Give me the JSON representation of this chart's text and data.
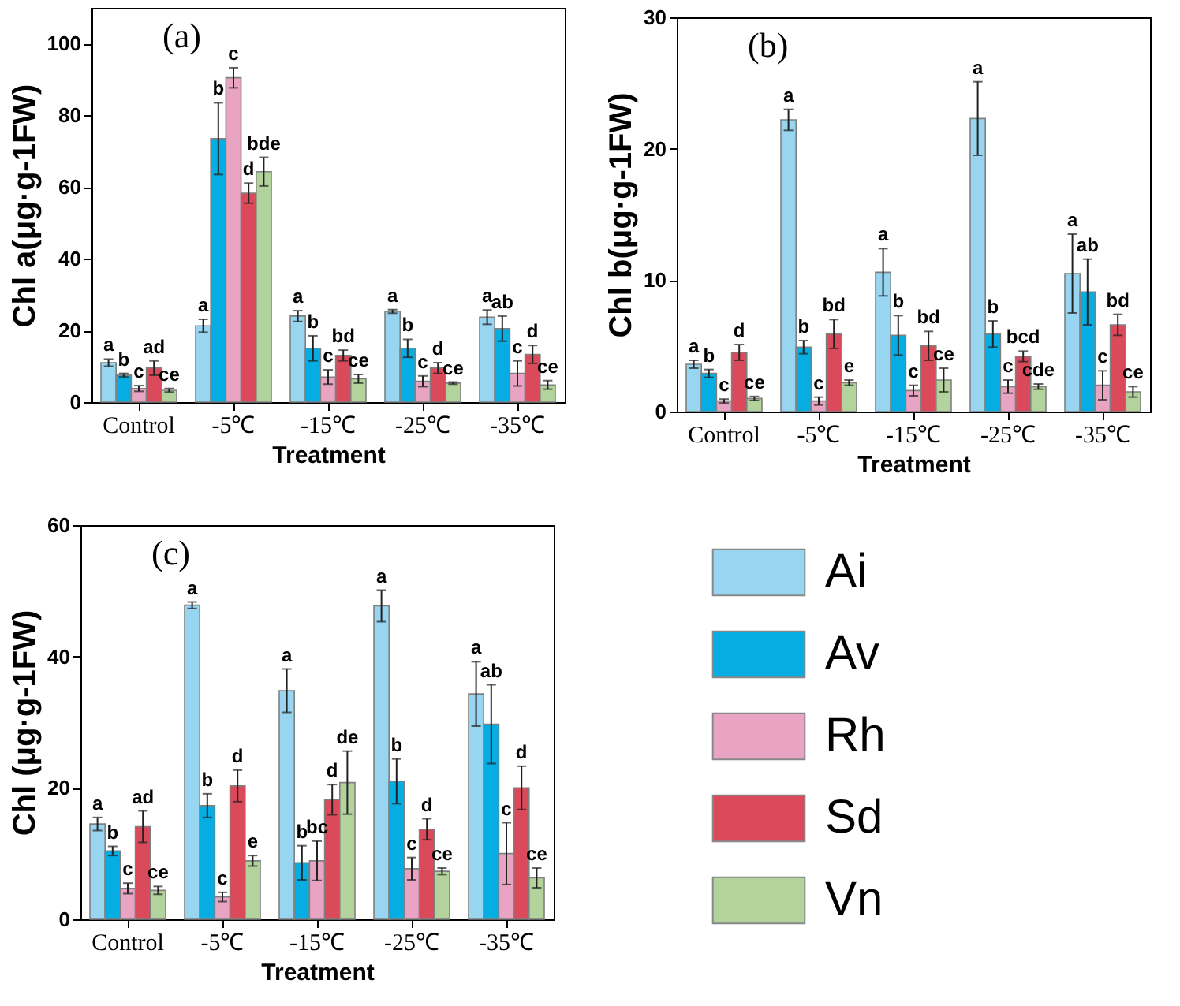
{
  "chart_data": [
    {
      "type": "bar",
      "annotations": [
        "(a)"
      ],
      "xlabel": "Treatment",
      "ylabel": "Chl a(μg·g-1FW)",
      "categories": [
        "Control",
        "-5℃",
        "-15℃",
        "-25℃",
        "-35℃"
      ],
      "ylim": [
        0,
        110
      ],
      "yticks": [
        0,
        20,
        40,
        60,
        80,
        100
      ],
      "legend": false,
      "series": [
        {
          "color": "#97d5f0",
          "values": [
            11,
            21.3,
            24,
            25.3,
            23.7
          ],
          "errors": [
            1,
            1.8,
            1.5,
            0.5,
            2
          ],
          "value_labels": [
            "a",
            "a",
            "a",
            "a",
            "a"
          ]
        },
        {
          "color": "#05ade2",
          "values": [
            7.5,
            73.5,
            15,
            15,
            20.5
          ],
          "errors": [
            0.5,
            10,
            3.5,
            2.5,
            3.5
          ],
          "value_labels": [
            "b",
            "b",
            "b",
            "b",
            "ab"
          ]
        },
        {
          "color": "#e8a4c2",
          "values": [
            3.8,
            90.5,
            7,
            5.8,
            8
          ],
          "errors": [
            0.8,
            2.8,
            2,
            1.5,
            3.5
          ],
          "value_labels": [
            "c",
            "c",
            "c",
            "c",
            "c"
          ]
        },
        {
          "color": "#db4a5a",
          "values": [
            9.5,
            58.3,
            13,
            9.5,
            13.3
          ],
          "errors": [
            2,
            2.8,
            1.5,
            1.5,
            2.5
          ],
          "value_labels": [
            "ad",
            "d",
            "bd",
            "d",
            "d"
          ]
        },
        {
          "color": "#b3d39d",
          "values": [
            3.3,
            64.3,
            6.5,
            5.3,
            4.8
          ],
          "errors": [
            0.5,
            4,
            1.2,
            0.3,
            1.2
          ],
          "value_labels": [
            "ce",
            "bde",
            "ce",
            "ce",
            "ce"
          ]
        }
      ]
    },
    {
      "type": "bar",
      "annotations": [
        "(b)"
      ],
      "xlabel": "Treatment",
      "ylabel": "Chl b(μg·g-1FW)",
      "categories": [
        "Control",
        "-5℃",
        "-15℃",
        "-25℃",
        "-35℃"
      ],
      "ylim": [
        0,
        30
      ],
      "yticks": [
        0,
        10,
        20,
        30
      ],
      "legend": false,
      "series": [
        {
          "color": "#97d5f0",
          "values": [
            3.6,
            22.2,
            10.6,
            22.3,
            10.5
          ],
          "errors": [
            0.3,
            0.8,
            1.8,
            2.8,
            3
          ],
          "value_labels": [
            "a",
            "a",
            "a",
            "a",
            "a"
          ]
        },
        {
          "color": "#05ade2",
          "values": [
            2.9,
            4.9,
            5.8,
            5.9,
            9.1
          ],
          "errors": [
            0.3,
            0.5,
            1.5,
            1,
            2.5
          ],
          "value_labels": [
            "b",
            "b",
            "b",
            "b",
            "ab"
          ]
        },
        {
          "color": "#e8a4c2",
          "values": [
            0.8,
            0.8,
            1.6,
            1.9,
            2
          ],
          "errors": [
            0.15,
            0.3,
            0.4,
            0.5,
            1.1
          ],
          "value_labels": [
            "c",
            "c",
            "c",
            "c",
            "c"
          ]
        },
        {
          "color": "#db4a5a",
          "values": [
            4.5,
            5.9,
            5,
            4.2,
            6.6
          ],
          "errors": [
            0.6,
            1.1,
            1.1,
            0.4,
            0.8
          ],
          "value_labels": [
            "d",
            "bd",
            "bd",
            "bcd",
            "bd"
          ]
        },
        {
          "color": "#b3d39d",
          "values": [
            1,
            2.2,
            2.4,
            1.9,
            1.5
          ],
          "errors": [
            0.15,
            0.2,
            0.9,
            0.2,
            0.4
          ],
          "value_labels": [
            "ce",
            "e",
            "ce",
            "cde",
            "ce"
          ]
        }
      ]
    },
    {
      "type": "bar",
      "annotations": [
        "(c)"
      ],
      "xlabel": "Treatment",
      "ylabel": "Chl (μg·g-1FW)",
      "categories": [
        "Control",
        "-5℃",
        "-15℃",
        "-25℃",
        "-35℃"
      ],
      "ylim": [
        0,
        60
      ],
      "yticks": [
        0,
        20,
        40,
        60
      ],
      "legend": "right",
      "series": [
        {
          "name": "Ai",
          "color": "#97d5f0",
          "values": [
            14.5,
            47.8,
            34.8,
            47.7,
            34.3
          ],
          "errors": [
            1,
            0.5,
            3.3,
            2.4,
            4.9
          ],
          "value_labels": [
            "a",
            "a",
            "a",
            "a",
            "a"
          ]
        },
        {
          "name": "Av",
          "color": "#05ade2",
          "values": [
            10.4,
            17.3,
            8.6,
            21,
            29.7
          ],
          "errors": [
            0.7,
            1.8,
            2.6,
            3.4,
            6
          ],
          "value_labels": [
            "b",
            "b",
            "b",
            "b",
            "ab"
          ]
        },
        {
          "name": "Rh",
          "color": "#e8a4c2",
          "values": [
            4.7,
            3.4,
            8.9,
            7.7,
            10
          ],
          "errors": [
            0.8,
            0.7,
            3,
            1.7,
            4.7
          ],
          "value_labels": [
            "c",
            "c",
            "bc",
            "c",
            "c"
          ]
        },
        {
          "name": "Sd",
          "color": "#db4a5a",
          "values": [
            14.1,
            20.3,
            18.2,
            13.7,
            20
          ],
          "errors": [
            2.4,
            2.4,
            2.3,
            1.6,
            3.3
          ],
          "value_labels": [
            "ad",
            "d",
            "d",
            "d",
            "d"
          ]
        },
        {
          "name": "Vn",
          "color": "#b3d39d",
          "values": [
            4.4,
            8.9,
            20.8,
            7.3,
            6.3
          ],
          "errors": [
            0.6,
            0.8,
            4.8,
            0.5,
            1.5
          ],
          "value_labels": [
            "ce",
            "e",
            "de",
            "ce",
            "ce"
          ]
        }
      ]
    }
  ]
}
